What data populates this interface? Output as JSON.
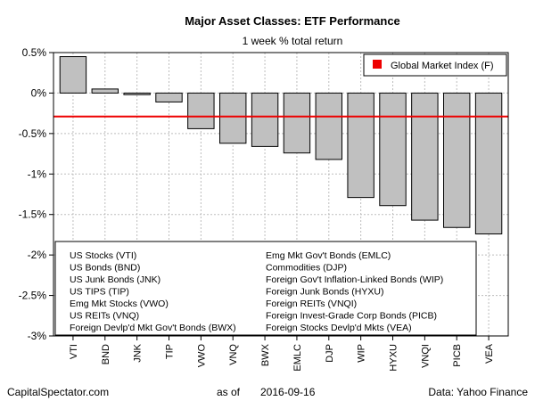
{
  "chart_data": {
    "type": "bar",
    "title": "Major Asset Classes: ETF Performance",
    "subtitle": "1 week % total return",
    "categories": [
      "VTI",
      "BND",
      "JNK",
      "TIP",
      "VWO",
      "VNQ",
      "BWX",
      "EMLC",
      "DJP",
      "WIP",
      "HYXU",
      "VNQI",
      "PICB",
      "VEA"
    ],
    "values": [
      0.45,
      0.05,
      -0.02,
      -0.11,
      -0.44,
      -0.62,
      -0.66,
      -0.74,
      -0.82,
      -1.29,
      -1.39,
      -1.57,
      -1.66,
      -1.74
    ],
    "ylim": [
      -3,
      0.5
    ],
    "yticks": [
      0.5,
      0,
      -0.5,
      -1,
      -1.5,
      -2,
      -2.5,
      -3
    ],
    "ytick_labels": [
      "0.5%",
      "0%",
      "-0.5%",
      "-1%",
      "-1.5%",
      "-2%",
      "-2.5%",
      "-3%"
    ],
    "reference_line": {
      "label": "Global Market Index (F)",
      "value": -0.29,
      "color": "#ee0000"
    },
    "bar_color": "#c0c0c0",
    "grid": true,
    "legend_position": "top-right",
    "key_left": [
      "US Stocks (VTI)",
      "US Bonds (BND)",
      "US Junk Bonds (JNK)",
      "US TIPS (TIP)",
      "Emg Mkt Stocks (VWO)",
      "US REITs (VNQ)",
      "Foreign Devlp'd Mkt Gov't Bonds (BWX)"
    ],
    "key_right": [
      "Emg Mkt Gov't Bonds (EMLC)",
      "Commodities (DJP)",
      "Foreign Gov't Inflation-Linked Bonds (WIP)",
      "Foreign Junk Bonds (HYXU)",
      "Foreign REITs (VNQI)",
      "Foreign Invest-Grade Corp Bonds (PICB)",
      "Foreign Stocks Devlp'd Mkts (VEA)"
    ]
  },
  "footer": {
    "left": "CapitalSpectator.com",
    "center_prefix": "as of",
    "date": "2016-09-16",
    "right": "Data: Yahoo Finance"
  }
}
